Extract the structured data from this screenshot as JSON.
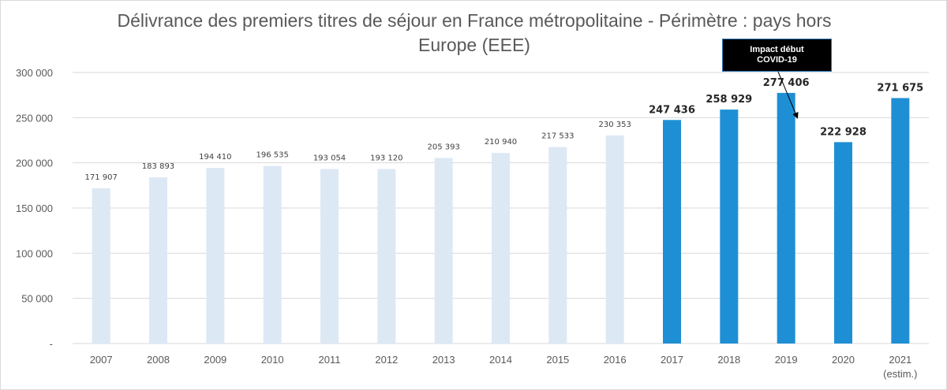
{
  "chart_data": {
    "type": "bar",
    "title": "Délivrance des premiers titres de séjour en France métropolitaine - Périmètre : pays hors Europe (EEE)",
    "categories": [
      "2007",
      "2008",
      "2009",
      "2010",
      "2011",
      "2012",
      "2013",
      "2014",
      "2015",
      "2016",
      "2017",
      "2018",
      "2019",
      "2020",
      "2021"
    ],
    "category_sublabels": {
      "2021": "(estim.)"
    },
    "values": [
      171907,
      183893,
      194410,
      196535,
      193054,
      193120,
      205393,
      210940,
      217533,
      230353,
      247436,
      258929,
      277406,
      222928,
      271675
    ],
    "data_labels": [
      "171 907",
      "183 893",
      "194 410",
      "196 535",
      "193 054",
      "193 120",
      "205 393",
      "210 940",
      "217 533",
      "230 353",
      "247 436",
      "258 929",
      "277 406",
      "222 928",
      "271 675"
    ],
    "ylim": [
      0,
      300000
    ],
    "y_ticks": [
      0,
      50000,
      100000,
      150000,
      200000,
      250000,
      300000
    ],
    "y_tick_labels": [
      "-",
      "50 000",
      "100 000",
      "150 000",
      "200 000",
      "250 000",
      "300 000"
    ],
    "xlabel": "",
    "ylabel": "",
    "grid": true,
    "legend": false,
    "colors": {
      "light": "#dde8f5",
      "dark": "#1e8fd4",
      "grid": "#d9d9d9",
      "text": "#595959"
    },
    "highlight_from_index": 10,
    "annotation": {
      "text_lines": [
        "Impact début",
        "COVID-19"
      ],
      "target_category": "2019"
    }
  }
}
